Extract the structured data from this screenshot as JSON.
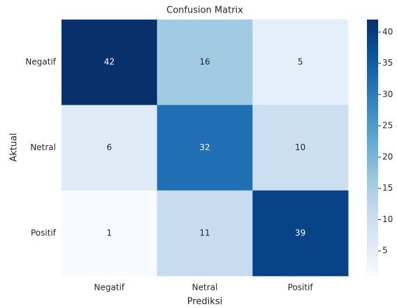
{
  "chart_data": {
    "type": "heatmap",
    "title": "Confusion Matrix",
    "x_label": "Prediksi",
    "y_label": "Aktual",
    "x_categories": [
      "Negatif",
      "Netral",
      "Positif"
    ],
    "y_categories": [
      "Negatif",
      "Netral",
      "Positif"
    ],
    "values": [
      [
        42,
        16,
        5
      ],
      [
        6,
        32,
        10
      ],
      [
        1,
        11,
        39
      ]
    ],
    "colormap": [
      "#f7fbff",
      "#deebf7",
      "#c6dbef",
      "#9ecae1",
      "#6baed6",
      "#4292c6",
      "#2171b5",
      "#08519c",
      "#08306b"
    ],
    "clim": [
      1,
      42
    ],
    "cticks": [
      5,
      10,
      15,
      20,
      25,
      30,
      35,
      40
    ]
  }
}
